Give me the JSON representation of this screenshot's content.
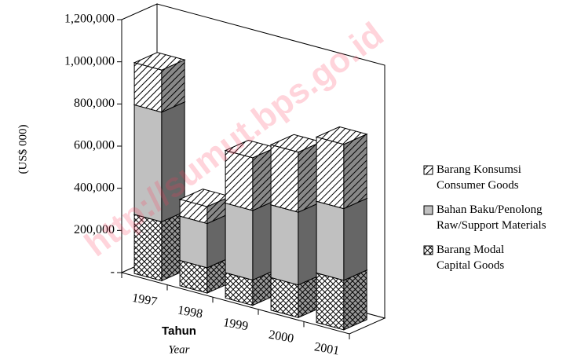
{
  "chart_data": {
    "type": "bar3d_stacked",
    "y_axis_label": "(US$ 000)",
    "x_axis_label": "Tahun",
    "x_axis_sublabel": "Year",
    "watermark": "http://sumut.bps.go.id",
    "categories": [
      "1997",
      "1998",
      "1999",
      "2000",
      "2001"
    ],
    "series": [
      {
        "name": "Barang Modal\nCapital Goods",
        "color": "#d9d9d9",
        "pattern": "crosshatch",
        "values": [
          280000,
          120000,
          120000,
          155000,
          235000
        ]
      },
      {
        "name": "Bahan Baku/Penolong\nRaw/Support Materials",
        "color": "#c0c0c0",
        "pattern": "solid",
        "values": [
          520000,
          210000,
          330000,
          345000,
          340000
        ]
      },
      {
        "name": "Barang Konsumsi\nConsumer Goods",
        "color": "#ffffff",
        "pattern": "diagonal",
        "values": [
          200000,
          80000,
          250000,
          285000,
          305000
        ]
      }
    ],
    "ylim": [
      0,
      1200000
    ],
    "yticks": [
      {
        "value": 0,
        "label": "-"
      },
      {
        "value": 200000,
        "label": "200,000"
      },
      {
        "value": 400000,
        "label": "400,000"
      },
      {
        "value": 600000,
        "label": "600,000"
      },
      {
        "value": 800000,
        "label": "800,000"
      },
      {
        "value": 1000000,
        "label": "1,000,000"
      },
      {
        "value": 1200000,
        "label": "1,200,000"
      }
    ],
    "legend": "right"
  }
}
